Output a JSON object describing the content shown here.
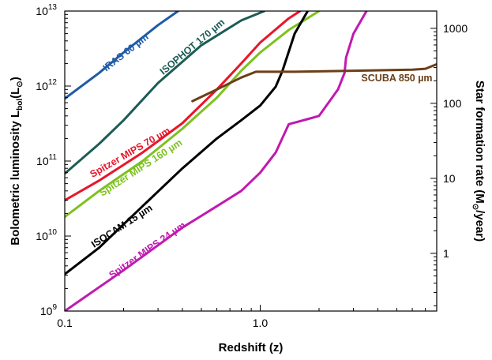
{
  "chart_data": {
    "type": "line",
    "xlabel": "Redshift (z)",
    "ylabel": "Bolometric luminosity L",
    "ylabel_sub": "bol",
    "ylabel_unit": "(L",
    "ylabel_sym": "⊙",
    "ylabel_close": ")",
    "y2label": "Star formation rate (M",
    "y2label_sym": "⊙",
    "y2label_tail": "/year)",
    "x_scale": "log",
    "y_scale": "log",
    "xlim": [
      0.1,
      8.0
    ],
    "ylim": [
      1000000000.0,
      10000000000000.0
    ],
    "x_ticks": [
      {
        "value": 0.1,
        "label": "0.1"
      },
      {
        "value": 1.0,
        "label": "1.0"
      }
    ],
    "y_ticks": [
      {
        "value": 1000000000.0,
        "base": "10",
        "exp": "9"
      },
      {
        "value": 10000000000.0,
        "base": "10",
        "exp": "10"
      },
      {
        "value": 100000000000.0,
        "base": "10",
        "exp": "11"
      },
      {
        "value": 1000000000000.0,
        "base": "10",
        "exp": "12"
      },
      {
        "value": 10000000000000.0,
        "base": "10",
        "exp": "13"
      }
    ],
    "y2_ticks": [
      {
        "value": 1,
        "label": "1"
      },
      {
        "value": 10,
        "label": "10"
      },
      {
        "value": 100,
        "label": "100"
      },
      {
        "value": 1000,
        "label": "1000"
      }
    ],
    "y2_lim": [
      0.17,
      1700
    ],
    "grid": false,
    "series": [
      {
        "name": "IRAS 60 µm",
        "color": "#1f5aa6",
        "points": [
          [
            0.1,
            680000000000.0
          ],
          [
            0.15,
            1500000000000.0
          ],
          [
            0.2,
            2800000000000.0
          ],
          [
            0.3,
            6500000000000.0
          ],
          [
            0.38,
            10000000000000.0
          ]
        ],
        "label_at": [
          0.21,
          2600000000000.0
        ],
        "label_rot": -38
      },
      {
        "name": "ISOPHOT 170 µm",
        "color": "#1d5c55",
        "points": [
          [
            0.1,
            68000000000.0
          ],
          [
            0.15,
            170000000000.0
          ],
          [
            0.2,
            350000000000.0
          ],
          [
            0.3,
            1100000000000.0
          ],
          [
            0.5,
            3500000000000.0
          ],
          [
            0.8,
            7500000000000.0
          ],
          [
            1.05,
            10000000000000.0
          ]
        ],
        "label_at": [
          0.46,
          3100000000000.0
        ],
        "label_rot": -40
      },
      {
        "name": "Spitzer MIPS 70 µm",
        "color": "#e8162a",
        "points": [
          [
            0.1,
            30000000000.0
          ],
          [
            0.15,
            55000000000.0
          ],
          [
            0.25,
            130000000000.0
          ],
          [
            0.4,
            320000000000.0
          ],
          [
            0.6,
            900000000000.0
          ],
          [
            0.8,
            2000000000000.0
          ],
          [
            1.0,
            3800000000000.0
          ],
          [
            1.4,
            8000000000000.0
          ],
          [
            1.6,
            10000000000000.0
          ]
        ],
        "label_at": [
          0.22,
          120000000000.0
        ],
        "label_rot": -30
      },
      {
        "name": "Spitzer MIPS 160 µm",
        "color": "#7dc11f",
        "points": [
          [
            0.1,
            18000000000.0
          ],
          [
            0.15,
            40000000000.0
          ],
          [
            0.25,
            100000000000.0
          ],
          [
            0.4,
            270000000000.0
          ],
          [
            0.6,
            700000000000.0
          ],
          [
            0.8,
            1600000000000.0
          ],
          [
            1.0,
            2800000000000.0
          ],
          [
            1.4,
            5600000000000.0
          ],
          [
            2.0,
            10000000000000.0
          ]
        ],
        "label_at": [
          0.25,
          75000000000.0
        ],
        "label_rot": -33
      },
      {
        "name": "ISOCAM 15 µm",
        "color": "#000000",
        "points": [
          [
            0.1,
            3100000000.0
          ],
          [
            0.15,
            7000000000.0
          ],
          [
            0.25,
            25000000000.0
          ],
          [
            0.4,
            80000000000.0
          ],
          [
            0.6,
            200000000000.0
          ],
          [
            0.8,
            350000000000.0
          ],
          [
            1.0,
            550000000000.0
          ],
          [
            1.2,
            980000000000.0
          ],
          [
            1.3,
            1600000000000.0
          ],
          [
            1.5,
            5000000000000.0
          ],
          [
            1.75,
            10000000000000.0
          ]
        ],
        "label_at": [
          0.2,
          12500000000.0
        ],
        "label_rot": -33
      },
      {
        "name": "Spitzer MIPS 24 µm",
        "color": "#c01ab0",
        "points": [
          [
            0.1,
            1000000000.0
          ],
          [
            0.2,
            3500000000.0
          ],
          [
            0.4,
            13000000000.0
          ],
          [
            0.6,
            25000000000.0
          ],
          [
            0.8,
            40000000000.0
          ],
          [
            1.0,
            70000000000.0
          ],
          [
            1.2,
            130000000000.0
          ],
          [
            1.4,
            310000000000.0
          ],
          [
            1.8,
            370000000000.0
          ],
          [
            2.0,
            400000000000.0
          ],
          [
            2.5,
            900000000000.0
          ],
          [
            2.7,
            1500000000000.0
          ],
          [
            2.75,
            2400000000000.0
          ],
          [
            3.0,
            5000000000000.0
          ],
          [
            3.5,
            10000000000000.0
          ]
        ],
        "label_at": [
          0.27,
          6000000000.0
        ],
        "label_rot": -35
      },
      {
        "name": "SCUBA 850 µm",
        "color": "#6b3f18",
        "points": [
          [
            0.45,
            630000000000.0
          ],
          [
            0.6,
            900000000000.0
          ],
          [
            0.8,
            1300000000000.0
          ],
          [
            0.95,
            1550000000000.0
          ],
          [
            1.5,
            1550000000000.0
          ],
          [
            3.0,
            1600000000000.0
          ],
          [
            6.0,
            1650000000000.0
          ],
          [
            7.0,
            1700000000000.0
          ],
          [
            8.0,
            1950000000000.0
          ]
        ],
        "label_at": [
          5.0,
          1150000000000.0
        ],
        "label_rot": 0
      }
    ]
  }
}
